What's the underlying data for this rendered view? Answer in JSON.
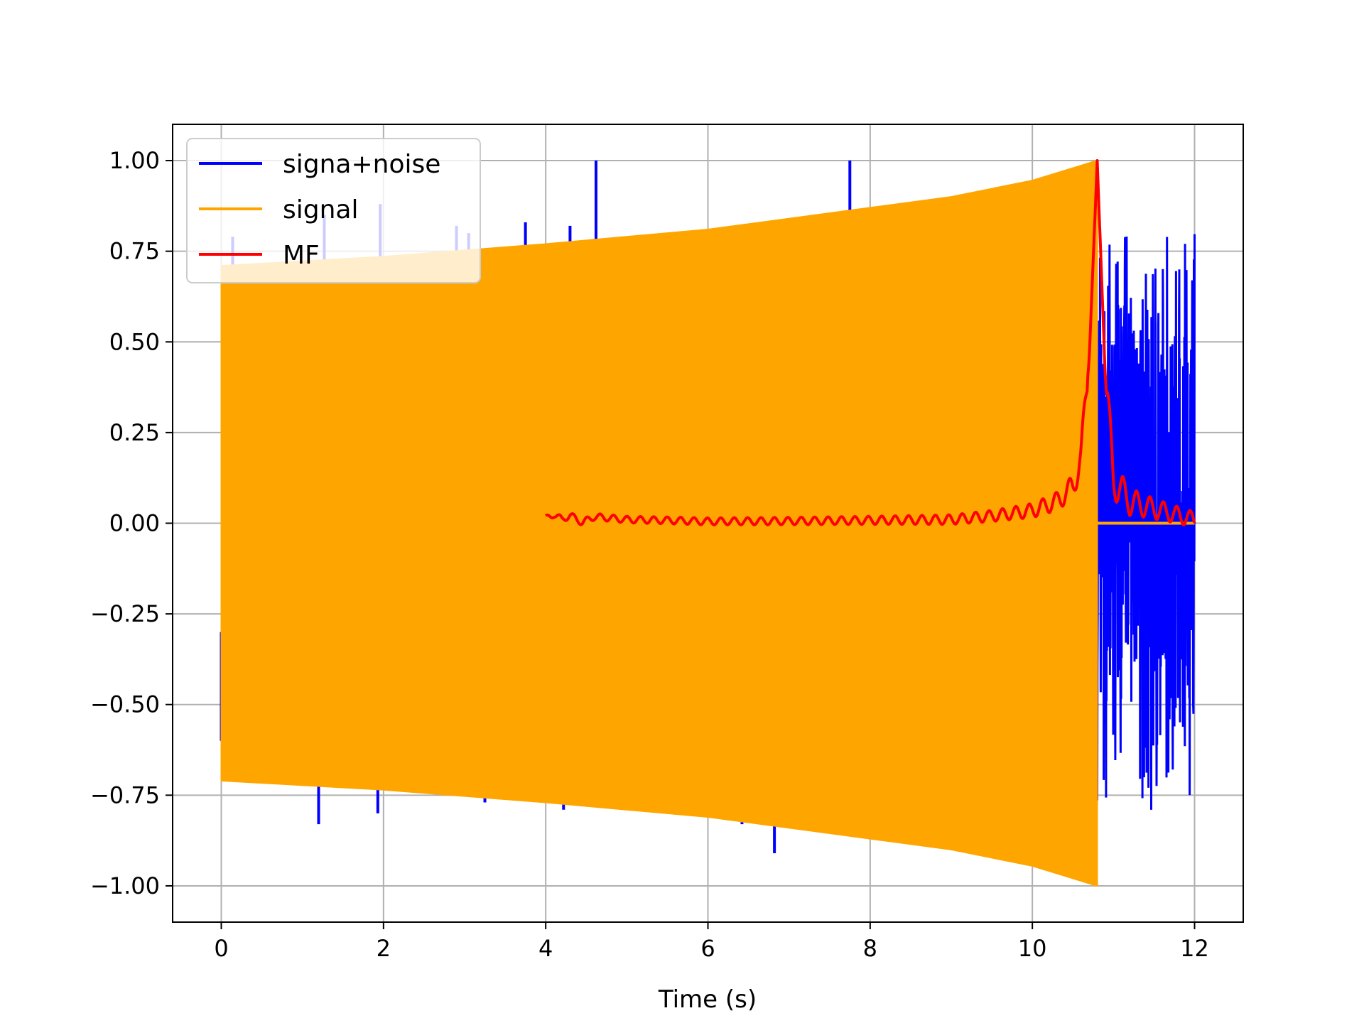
{
  "chart_data": {
    "type": "line",
    "title": "",
    "xlabel": "Time (s)",
    "ylabel": "",
    "xlim": [
      -0.6,
      12.6
    ],
    "ylim": [
      -1.1,
      1.1
    ],
    "xticks": [
      0,
      2,
      4,
      6,
      8,
      10,
      12
    ],
    "xtick_labels": [
      "0",
      "2",
      "4",
      "6",
      "8",
      "10",
      "12"
    ],
    "yticks": [
      1.0,
      0.75,
      0.5,
      0.25,
      0.0,
      -0.25,
      -0.5,
      -0.75,
      -1.0
    ],
    "ytick_labels": [
      "1.00",
      "0.75",
      "0.50",
      "0.25",
      "0.00",
      "−0.25",
      "−0.50",
      "−0.75",
      "−1.00"
    ],
    "grid": true,
    "legend_position": "upper-left",
    "series": [
      {
        "name": "signa+noise",
        "color": "#0000ff",
        "noise_region": {
          "x_start": 10.8,
          "x_end": 12.0
        },
        "spikes": [
          {
            "x": 0.0,
            "y": -0.3
          },
          {
            "x": 0.14,
            "y": 0.79
          },
          {
            "x": 1.2,
            "y": -0.83
          },
          {
            "x": 1.27,
            "y": 0.85
          },
          {
            "x": 1.93,
            "y": -0.8
          },
          {
            "x": 1.96,
            "y": 0.88
          },
          {
            "x": 2.9,
            "y": 0.82
          },
          {
            "x": 3.05,
            "y": 0.8
          },
          {
            "x": 3.25,
            "y": -0.77
          },
          {
            "x": 3.75,
            "y": 0.83
          },
          {
            "x": 4.22,
            "y": -0.79
          },
          {
            "x": 4.3,
            "y": 0.82
          },
          {
            "x": 4.62,
            "y": 1.0
          },
          {
            "x": 6.42,
            "y": -0.83
          },
          {
            "x": 6.82,
            "y": -0.91
          },
          {
            "x": 7.75,
            "y": 1.0
          }
        ]
      },
      {
        "name": "signal",
        "color": "#ffa500",
        "envelope": [
          {
            "x": 0.0,
            "y": 0.71
          },
          {
            "x": 2.0,
            "y": 0.735
          },
          {
            "x": 4.0,
            "y": 0.77
          },
          {
            "x": 6.0,
            "y": 0.81
          },
          {
            "x": 8.0,
            "y": 0.87
          },
          {
            "x": 9.0,
            "y": 0.9
          },
          {
            "x": 10.0,
            "y": 0.945
          },
          {
            "x": 10.8,
            "y": 1.0
          }
        ],
        "after": {
          "x_start": 10.8,
          "x_end": 12.0,
          "y": 0.0
        }
      },
      {
        "name": "MF",
        "color": "#ff0000",
        "peak": {
          "x": 10.8,
          "y": 1.0
        },
        "points": [
          {
            "x": 4.0,
            "y": 0.012
          },
          {
            "x": 4.1,
            "y": 0.025
          },
          {
            "x": 4.2,
            "y": 0.01
          },
          {
            "x": 4.3,
            "y": 0.022
          },
          {
            "x": 4.45,
            "y": 0.002
          },
          {
            "x": 4.6,
            "y": 0.018
          },
          {
            "x": 5.0,
            "y": 0.01
          },
          {
            "x": 5.5,
            "y": 0.008
          },
          {
            "x": 6.0,
            "y": 0.005
          },
          {
            "x": 7.0,
            "y": 0.006
          },
          {
            "x": 8.0,
            "y": 0.008
          },
          {
            "x": 9.0,
            "y": 0.01
          },
          {
            "x": 9.5,
            "y": 0.02
          },
          {
            "x": 10.0,
            "y": 0.035
          },
          {
            "x": 10.3,
            "y": 0.06
          },
          {
            "x": 10.5,
            "y": 0.1
          },
          {
            "x": 10.6,
            "y": 0.18
          },
          {
            "x": 10.7,
            "y": 0.45
          },
          {
            "x": 10.8,
            "y": 1.0
          },
          {
            "x": 10.9,
            "y": 0.4
          },
          {
            "x": 11.0,
            "y": 0.12
          },
          {
            "x": 11.2,
            "y": 0.06
          },
          {
            "x": 11.5,
            "y": 0.04
          },
          {
            "x": 12.0,
            "y": 0.01
          }
        ]
      }
    ]
  }
}
